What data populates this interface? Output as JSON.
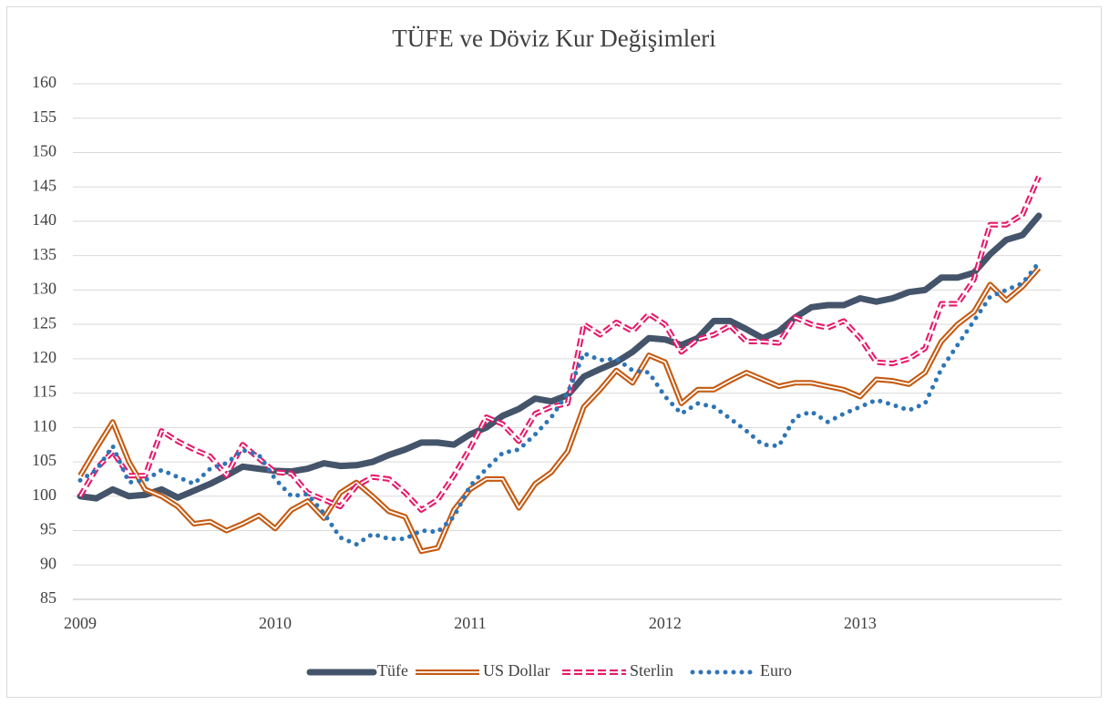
{
  "chart_data": {
    "type": "line",
    "title": "TÜFE ve Döviz Kur Değişimleri",
    "categories": [
      "2009",
      null,
      null,
      null,
      null,
      null,
      null,
      null,
      null,
      null,
      null,
      null,
      "2010",
      null,
      null,
      null,
      null,
      null,
      null,
      null,
      null,
      null,
      null,
      null,
      "2011",
      null,
      null,
      null,
      null,
      null,
      null,
      null,
      null,
      null,
      null,
      null,
      "2012",
      null,
      null,
      null,
      null,
      null,
      null,
      null,
      null,
      null,
      null,
      null,
      "2013",
      null,
      null,
      null,
      null,
      null,
      null,
      null,
      null,
      null,
      null,
      null
    ],
    "series": [
      {
        "name": "Tüfe",
        "color": "#44546a",
        "values": [
          100,
          99.7,
          101,
          100,
          100.2,
          101,
          99.8,
          100.8,
          101.8,
          103,
          104.3,
          104,
          103.7,
          103.6,
          104,
          104.8,
          104.4,
          104.5,
          105,
          106,
          106.8,
          107.8,
          107.8,
          107.5,
          109,
          110,
          111.7,
          112.7,
          114.2,
          113.8,
          114.7,
          117.4,
          118.5,
          119.5,
          121,
          123,
          122.8,
          122,
          123,
          125.5,
          125.5,
          124.3,
          123,
          124,
          126,
          127.5,
          127.8,
          127.8,
          128.8,
          128.3,
          128.8,
          129.7,
          130,
          131.8,
          131.8,
          132.5,
          135.2,
          137.3,
          138,
          140.8
        ]
      },
      {
        "name": "US Dollar",
        "color": "#c55a11",
        "values": [
          103,
          107,
          110.8,
          105,
          101,
          100,
          98.5,
          96,
          96.3,
          95,
          96,
          97.2,
          95.3,
          98,
          99.3,
          96.8,
          100.5,
          102,
          100,
          97.8,
          97,
          92,
          92.5,
          98,
          101,
          102.5,
          102.5,
          98.3,
          101.8,
          103.5,
          106.5,
          113,
          115.5,
          118.3,
          116.5,
          120.5,
          119.5,
          113.5,
          115.5,
          115.5,
          116.8,
          118,
          117,
          116,
          116.5,
          116.5,
          116,
          115.5,
          114.5,
          117,
          116.8,
          116.3,
          118,
          122.5,
          125,
          126.8,
          130.8,
          128.5,
          130.5,
          133.2
        ]
      },
      {
        "name": "Sterlin",
        "color": "#e6196b",
        "values": [
          100,
          104,
          106.5,
          103,
          103,
          109.5,
          108,
          106.8,
          105.8,
          103,
          107.5,
          105.5,
          103.5,
          103.3,
          100.5,
          99.5,
          98.5,
          101.5,
          102.8,
          102.5,
          100.5,
          98,
          99.5,
          103,
          107,
          111.5,
          110.5,
          108,
          112,
          113,
          113.5,
          125,
          123.5,
          125.3,
          124,
          126.5,
          125,
          121,
          122.8,
          123.5,
          124.8,
          122.5,
          122.5,
          122.3,
          126,
          125,
          124.5,
          125.5,
          123,
          119.5,
          119.3,
          120,
          121.5,
          128,
          128,
          131.5,
          139.5,
          139.5,
          141,
          146.5
        ]
      },
      {
        "name": "Euro",
        "color": "#2e75b6",
        "values": [
          102.3,
          103.8,
          107.3,
          102,
          102.3,
          103.8,
          102.8,
          101.8,
          104,
          104.8,
          106.7,
          106,
          102.5,
          100,
          100.3,
          97.5,
          94,
          93,
          94.5,
          93.8,
          93.8,
          95,
          94.8,
          97,
          101.5,
          104,
          106.3,
          106.8,
          109,
          111.5,
          115,
          120.8,
          119.8,
          120,
          118.3,
          118,
          114.5,
          112,
          113.5,
          113,
          111.3,
          109.5,
          107.5,
          107.3,
          111.5,
          112.3,
          110.8,
          112,
          113,
          114,
          113.3,
          112.5,
          113.5,
          118.5,
          122,
          125.5,
          129,
          130,
          131,
          134
        ]
      }
    ],
    "ylim": [
      85,
      160
    ],
    "yticks": [
      85,
      90,
      95,
      100,
      105,
      110,
      115,
      120,
      125,
      130,
      135,
      140,
      145,
      150,
      155,
      160
    ],
    "grid": true,
    "legend": "bottom"
  }
}
